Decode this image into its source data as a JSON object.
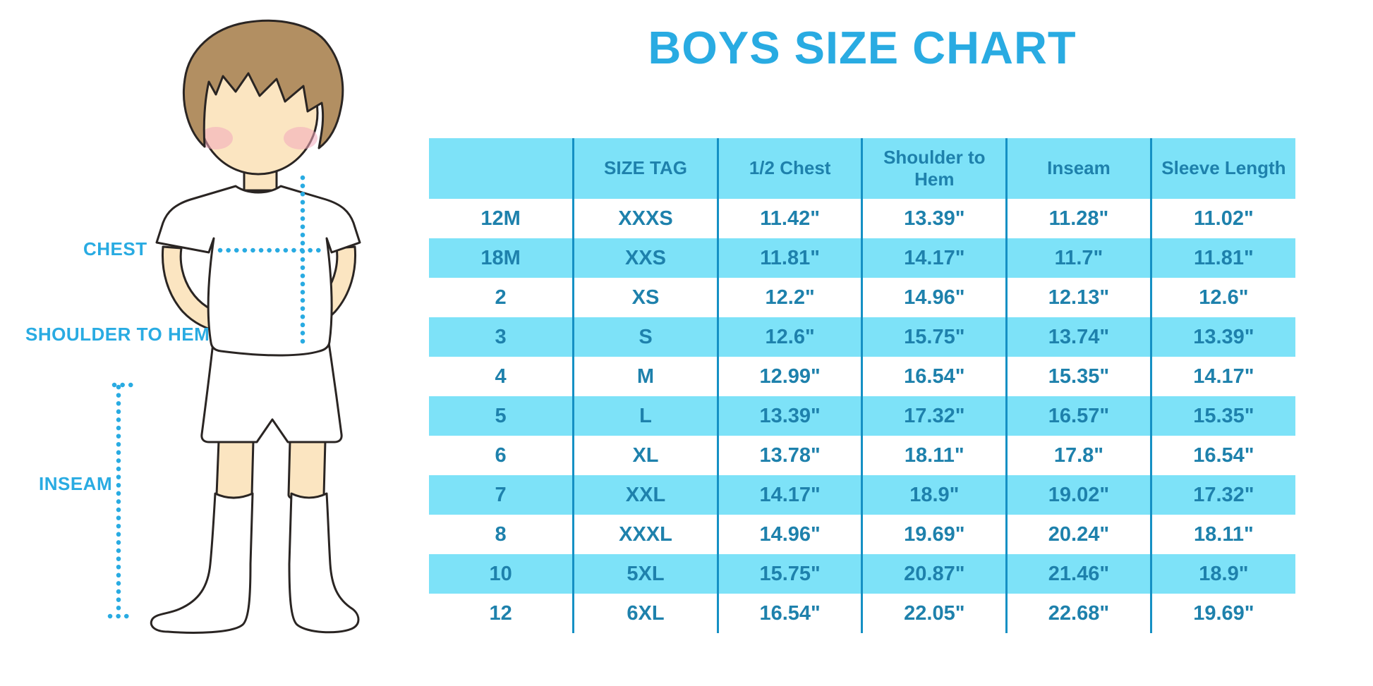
{
  "title": "BOYS SIZE CHART",
  "figure_labels": {
    "chest": "CHEST",
    "shoulder_to_hem": "SHOULDER TO HEM",
    "inseam": "INSEAM"
  },
  "colors": {
    "accent_blue": "#29ABE2",
    "table_fill_cyan": "#7DE2F8",
    "table_text_blue": "#1E81AC",
    "table_line_blue": "#1590C4",
    "skin": "#FBE5C1",
    "hair_brown": "#B28F62",
    "blush_pink": "#F3A9BC"
  },
  "chart_data": {
    "type": "table",
    "title": "BOYS SIZE CHART",
    "columns": [
      "",
      "SIZE TAG",
      "1/2 Chest",
      "Shoulder to Hem",
      "Inseam",
      "Sleeve Length"
    ],
    "rows": [
      [
        "12M",
        "XXXS",
        "11.42\"",
        "13.39\"",
        "11.28\"",
        "11.02\""
      ],
      [
        "18M",
        "XXS",
        "11.81\"",
        "14.17\"",
        "11.7\"",
        "11.81\""
      ],
      [
        "2",
        "XS",
        "12.2\"",
        "14.96\"",
        "12.13\"",
        "12.6\""
      ],
      [
        "3",
        "S",
        "12.6\"",
        "15.75\"",
        "13.74\"",
        "13.39\""
      ],
      [
        "4",
        "M",
        "12.99\"",
        "16.54\"",
        "15.35\"",
        "14.17\""
      ],
      [
        "5",
        "L",
        "13.39\"",
        "17.32\"",
        "16.57\"",
        "15.35\""
      ],
      [
        "6",
        "XL",
        "13.78\"",
        "18.11\"",
        "17.8\"",
        "16.54\""
      ],
      [
        "7",
        "XXL",
        "14.17\"",
        "18.9\"",
        "19.02\"",
        "17.32\""
      ],
      [
        "8",
        "XXXL",
        "14.96\"",
        "19.69\"",
        "20.24\"",
        "18.11\""
      ],
      [
        "10",
        "5XL",
        "15.75\"",
        "20.87\"",
        "21.46\"",
        "18.9\""
      ],
      [
        "12",
        "6XL",
        "16.54\"",
        "22.05\"",
        "22.68\"",
        "19.69\""
      ]
    ],
    "row_striping": "alternating white / light cyan, starting white",
    "units": "inches"
  }
}
